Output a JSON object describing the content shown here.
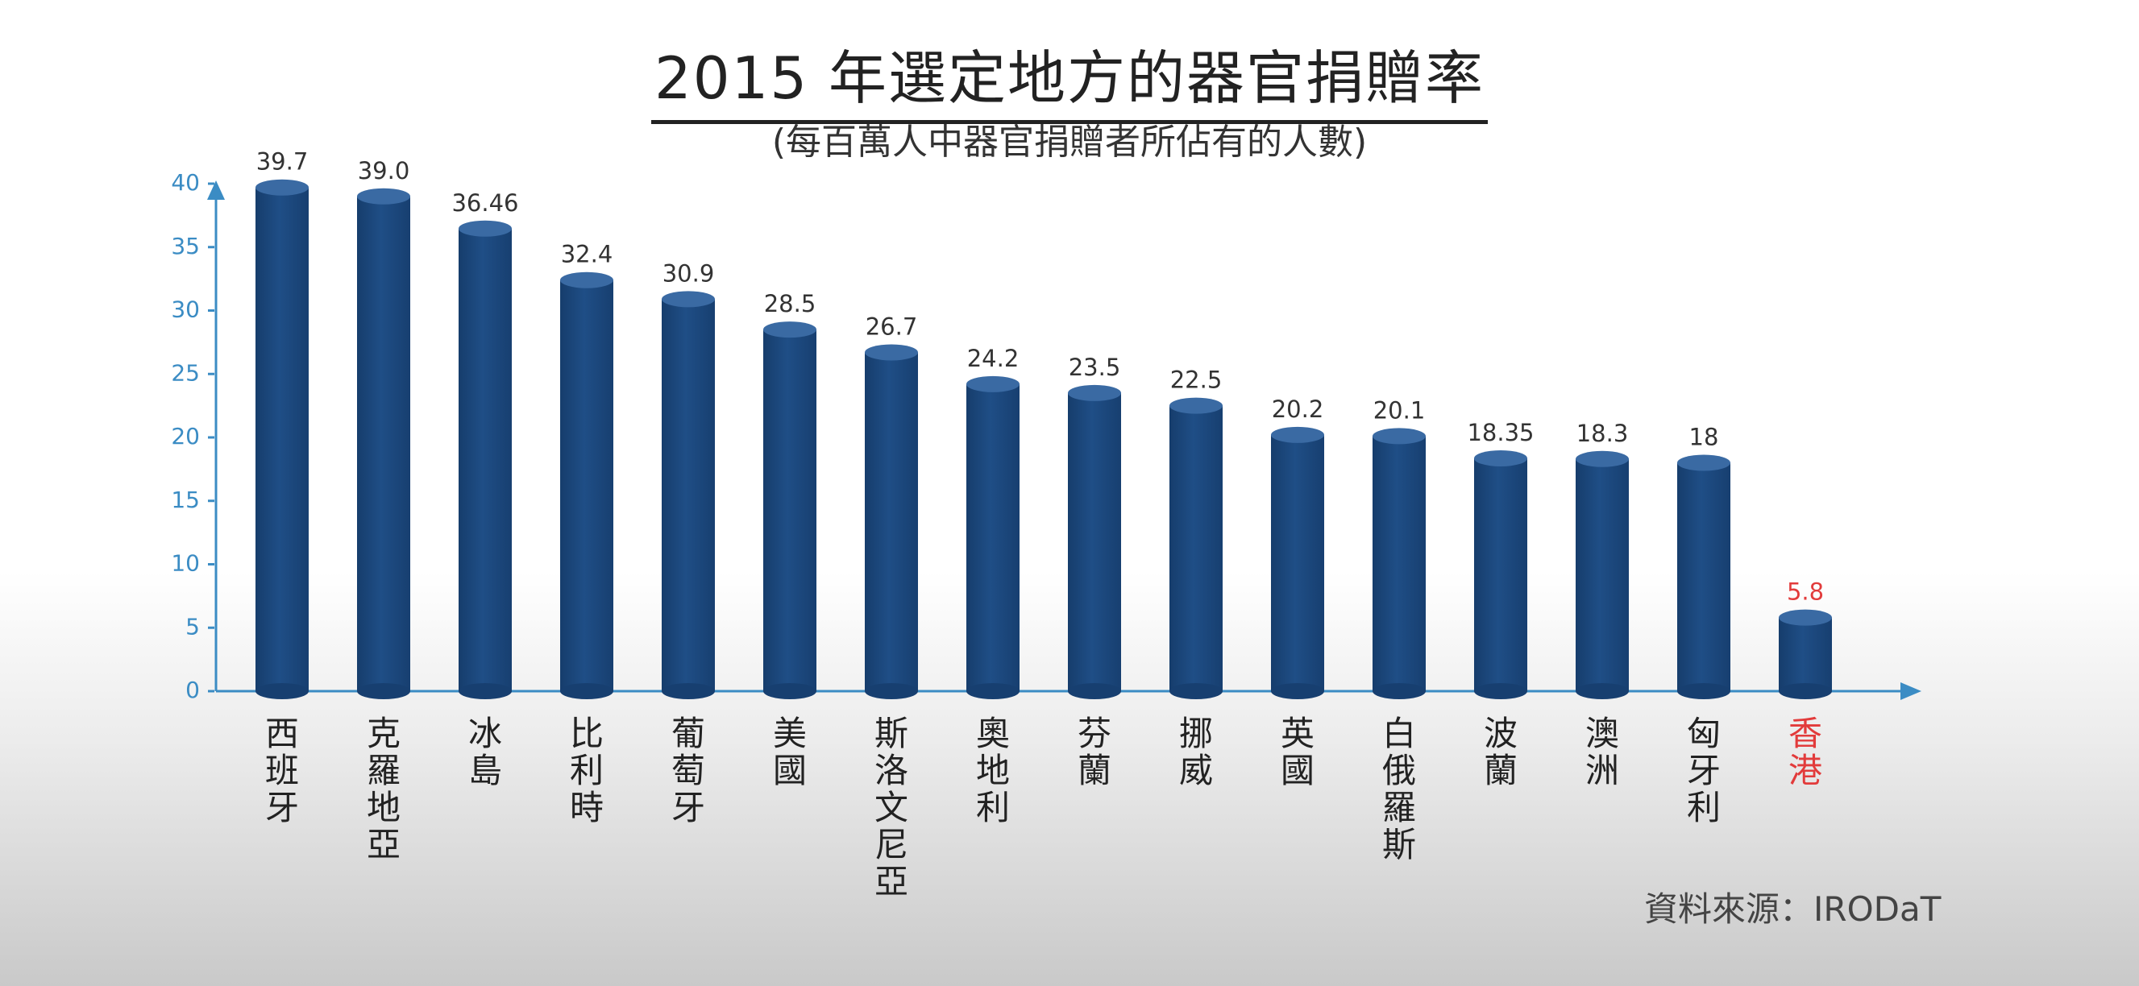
{
  "title": "2015 年選定地方的器官捐贈率",
  "subtitle": "(每百萬人中器官捐贈者所佔有的人數)",
  "source": "資料來源：IRODaT",
  "colors": {
    "bar": "#1f4e86",
    "bar_top": "#3a6aa3",
    "axis": "#3b8cc4",
    "highlight": "#e23b3b",
    "text": "#333333"
  },
  "chart_data": {
    "type": "bar",
    "title": "2015 年選定地方的器官捐贈率",
    "subtitle": "(每百萬人中器官捐贈者所佔有的人數)",
    "xlabel": "",
    "ylabel": "",
    "ylim": [
      0,
      40
    ],
    "yticks": [
      0,
      5,
      10,
      15,
      20,
      25,
      30,
      35,
      40
    ],
    "categories": [
      "西班牙",
      "克羅地亞",
      "冰島",
      "比利時",
      "葡萄牙",
      "美國",
      "斯洛文尼亞",
      "奧地利",
      "芬蘭",
      "挪威",
      "英國",
      "白俄羅斯",
      "波蘭",
      "澳洲",
      "匈牙利",
      "香港"
    ],
    "values": [
      39.7,
      39.0,
      36.46,
      32.4,
      30.9,
      28.5,
      26.7,
      24.2,
      23.5,
      22.5,
      20.2,
      20.1,
      18.35,
      18.3,
      18,
      5.8
    ],
    "value_labels": [
      "39.7",
      "39.0",
      "36.46",
      "32.4",
      "30.9",
      "28.5",
      "26.7",
      "24.2",
      "23.5",
      "22.5",
      "20.2",
      "20.1",
      "18.35",
      "18.3",
      "18",
      "5.8"
    ],
    "highlight_index": 15,
    "grid": false
  }
}
